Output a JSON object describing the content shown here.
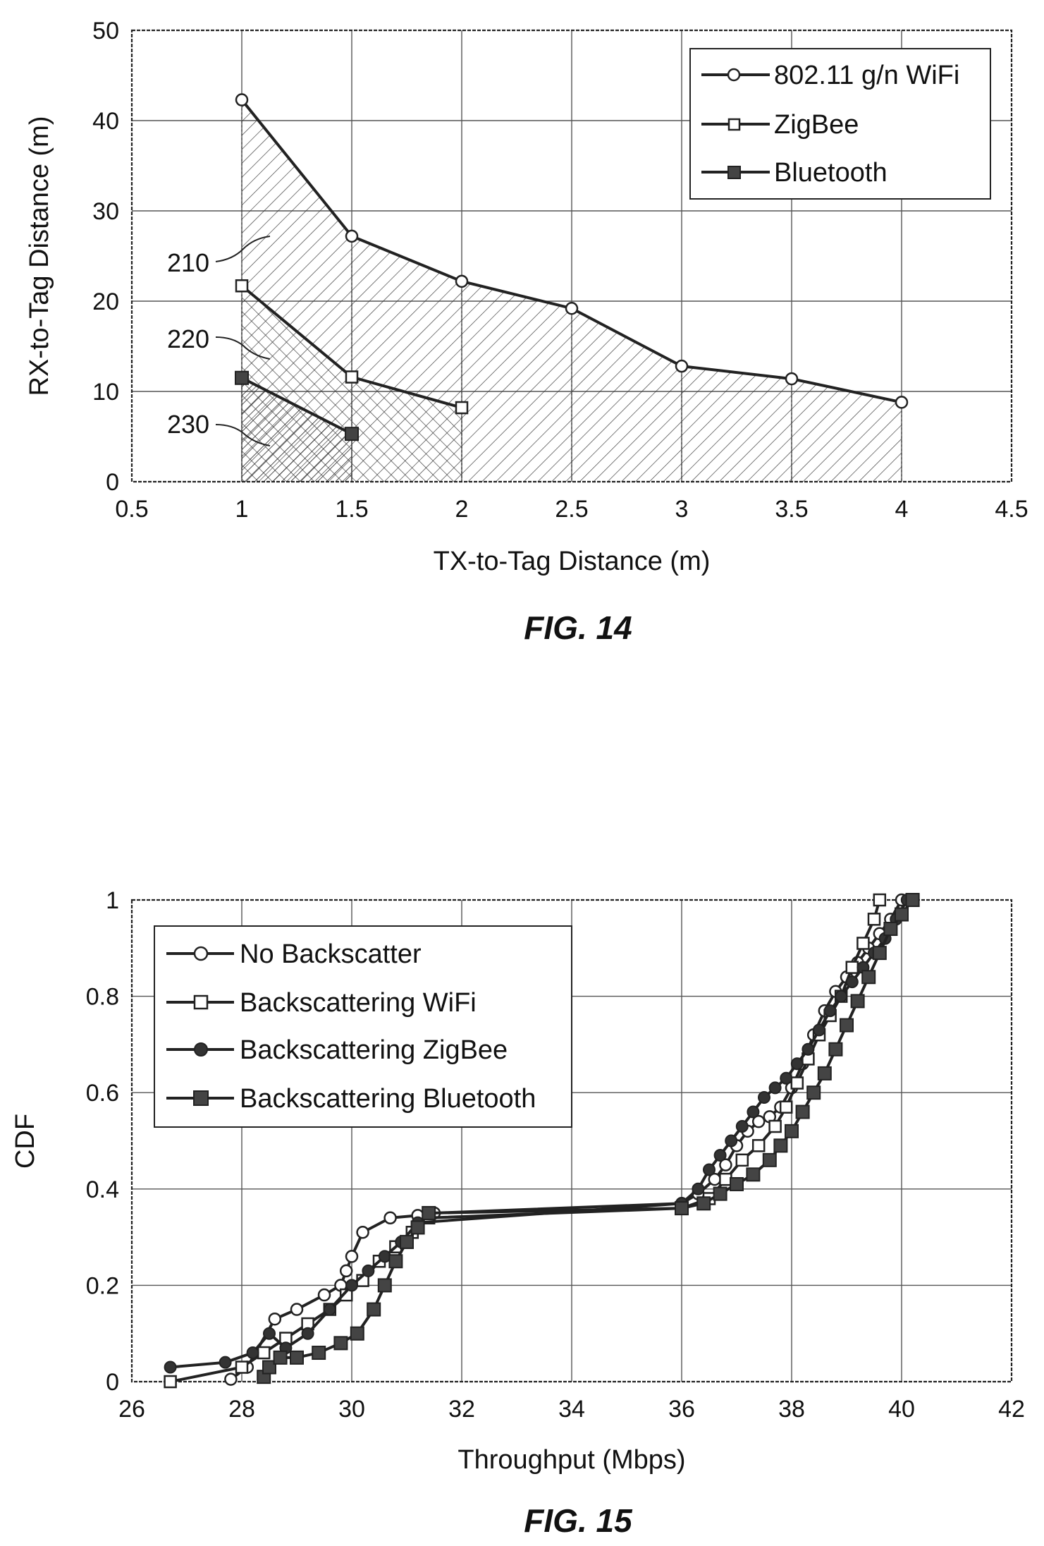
{
  "chart_data": [
    {
      "type": "line",
      "caption": "FIG. 14",
      "xlabel": "TX-to-Tag Distance (m)",
      "ylabel": "RX-to-Tag Distance (m)",
      "xlim": [
        0.5,
        4.5
      ],
      "ylim": [
        0,
        50
      ],
      "xticks": [
        "0.5",
        "1",
        "1.5",
        "2",
        "2.5",
        "3",
        "3.5",
        "4",
        "4.5"
      ],
      "yticks": [
        "0",
        "10",
        "20",
        "30",
        "40",
        "50"
      ],
      "grid": true,
      "legend_position": "top-right",
      "series": [
        {
          "name": "802.11 g/n WiFi",
          "marker": "open-circle",
          "x": [
            1,
            1.5,
            2,
            2.5,
            3,
            3.5,
            4
          ],
          "y": [
            42.3,
            27.2,
            22.2,
            19.2,
            12.8,
            11.4,
            8.8
          ]
        },
        {
          "name": "ZigBee",
          "marker": "open-square",
          "x": [
            1,
            1.5,
            2
          ],
          "y": [
            21.7,
            11.6,
            8.2
          ]
        },
        {
          "name": "Bluetooth",
          "marker": "filled-square",
          "x": [
            1,
            1.5
          ],
          "y": [
            11.5,
            5.3
          ]
        }
      ],
      "annotations": [
        {
          "text": "210",
          "points_to": "802.11 g/n WiFi"
        },
        {
          "text": "220",
          "points_to": "ZigBee"
        },
        {
          "text": "230",
          "points_to": "Bluetooth"
        }
      ]
    },
    {
      "type": "line",
      "caption": "FIG. 15",
      "xlabel": "Throughput (Mbps)",
      "ylabel": "CDF",
      "xlim": [
        26,
        42
      ],
      "ylim": [
        0,
        1
      ],
      "xticks": [
        "26",
        "28",
        "30",
        "32",
        "34",
        "36",
        "38",
        "40",
        "42"
      ],
      "yticks": [
        "0",
        "0.2",
        "0.4",
        "0.6",
        "0.8",
        "1"
      ],
      "grid": true,
      "legend_position": "top-left",
      "series": [
        {
          "name": "No Backscatter",
          "marker": "open-circle",
          "x": [
            27.8,
            28.1,
            28.6,
            29.0,
            29.5,
            29.8,
            29.9,
            30.0,
            30.2,
            30.7,
            31.2,
            31.5,
            36.0,
            36.3,
            36.6,
            36.8,
            37.0,
            37.2,
            37.4,
            37.6,
            37.8,
            38.0,
            38.2,
            38.4,
            38.6,
            38.8,
            39.0,
            39.2,
            39.4,
            39.6,
            39.8,
            40.0
          ],
          "y": [
            0.005,
            0.03,
            0.13,
            0.15,
            0.18,
            0.2,
            0.23,
            0.26,
            0.31,
            0.34,
            0.345,
            0.35,
            0.37,
            0.39,
            0.42,
            0.45,
            0.49,
            0.52,
            0.54,
            0.55,
            0.57,
            0.61,
            0.66,
            0.72,
            0.77,
            0.81,
            0.84,
            0.87,
            0.9,
            0.93,
            0.96,
            1.0
          ]
        },
        {
          "name": "Backscattering WiFi",
          "marker": "open-square",
          "x": [
            26.7,
            28.0,
            28.4,
            28.8,
            29.2,
            29.6,
            29.9,
            30.2,
            30.5,
            30.8,
            31.1,
            31.4,
            36.0,
            36.5,
            36.8,
            37.1,
            37.4,
            37.7,
            37.9,
            38.1,
            38.3,
            38.5,
            38.7,
            38.9,
            39.1,
            39.3,
            39.5,
            39.6
          ],
          "y": [
            0.0,
            0.03,
            0.06,
            0.09,
            0.12,
            0.15,
            0.18,
            0.21,
            0.25,
            0.28,
            0.31,
            0.34,
            0.36,
            0.38,
            0.42,
            0.46,
            0.49,
            0.53,
            0.57,
            0.62,
            0.67,
            0.72,
            0.76,
            0.8,
            0.86,
            0.91,
            0.96,
            1.0
          ]
        },
        {
          "name": "Backscattering ZigBee",
          "marker": "filled-circle",
          "x": [
            26.7,
            27.7,
            28.2,
            28.5,
            28.8,
            29.2,
            29.6,
            30.0,
            30.3,
            30.6,
            30.9,
            31.2,
            36.0,
            36.3,
            36.5,
            36.7,
            36.9,
            37.1,
            37.3,
            37.5,
            37.7,
            37.9,
            38.1,
            38.3,
            38.5,
            38.7,
            38.9,
            39.1,
            39.3,
            39.5,
            39.7,
            39.9,
            40.1
          ],
          "y": [
            0.03,
            0.04,
            0.06,
            0.1,
            0.07,
            0.1,
            0.15,
            0.2,
            0.23,
            0.26,
            0.29,
            0.33,
            0.37,
            0.4,
            0.44,
            0.47,
            0.5,
            0.53,
            0.56,
            0.59,
            0.61,
            0.63,
            0.66,
            0.69,
            0.73,
            0.77,
            0.8,
            0.83,
            0.86,
            0.89,
            0.92,
            0.96,
            1.0
          ]
        },
        {
          "name": "Backscattering Bluetooth",
          "marker": "filled-square",
          "x": [
            28.4,
            28.5,
            28.7,
            29.0,
            29.4,
            29.8,
            30.1,
            30.4,
            30.6,
            30.8,
            31.0,
            31.2,
            31.4,
            36.0,
            36.4,
            36.7,
            37.0,
            37.3,
            37.6,
            37.8,
            38.0,
            38.2,
            38.4,
            38.6,
            38.8,
            39.0,
            39.2,
            39.4,
            39.6,
            39.8,
            40.0,
            40.2
          ],
          "y": [
            0.01,
            0.03,
            0.05,
            0.05,
            0.06,
            0.08,
            0.1,
            0.15,
            0.2,
            0.25,
            0.29,
            0.32,
            0.35,
            0.36,
            0.37,
            0.39,
            0.41,
            0.43,
            0.46,
            0.49,
            0.52,
            0.56,
            0.6,
            0.64,
            0.69,
            0.74,
            0.79,
            0.84,
            0.89,
            0.94,
            0.97,
            1.0
          ]
        }
      ]
    }
  ]
}
